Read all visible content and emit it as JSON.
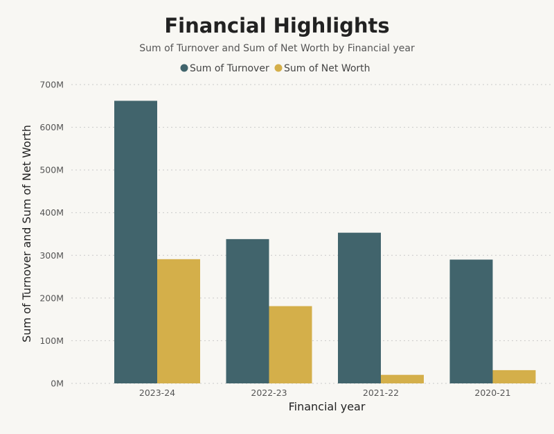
{
  "colors": {
    "background": "#f8f7f3",
    "turnover": "#41646c",
    "net_worth": "#d4af4a"
  },
  "chart_data": {
    "type": "bar",
    "title": "Financial Highlights",
    "subtitle": "Sum of Turnover and Sum of Net Worth by Financial year",
    "xlabel": "Financial year",
    "ylabel": "Sum of Turnover and Sum of Net Worth",
    "categories": [
      "2023-24",
      "2022-23",
      "2021-22",
      "2020-21"
    ],
    "series": [
      {
        "name": "Sum of Turnover",
        "color": "#41646c",
        "values": [
          662,
          338,
          353,
          290
        ]
      },
      {
        "name": "Sum of Net Worth",
        "color": "#d4af4a",
        "values": [
          291,
          181,
          20,
          31
        ]
      }
    ],
    "ylim": [
      0,
      700
    ],
    "yticks": [
      0,
      100,
      200,
      300,
      400,
      500,
      600,
      700
    ],
    "ytick_labels": [
      "0M",
      "100M",
      "200M",
      "300M",
      "400M",
      "500M",
      "600M",
      "700M"
    ],
    "legend_position": "top-center",
    "grid": true
  }
}
